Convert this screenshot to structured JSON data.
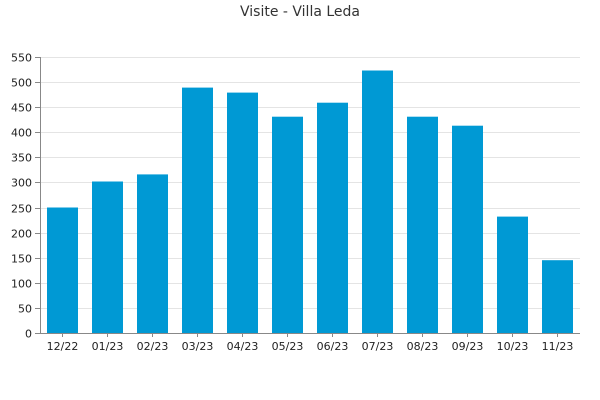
{
  "chart_data": {
    "type": "bar",
    "title": "Visite - Villa Leda",
    "xlabel": "",
    "ylabel": "",
    "categories": [
      "12/22",
      "01/23",
      "02/23",
      "03/23",
      "04/23",
      "05/23",
      "06/23",
      "07/23",
      "08/23",
      "09/23",
      "10/23",
      "11/23"
    ],
    "values": [
      250,
      302,
      316,
      489,
      479,
      431,
      459,
      523,
      431,
      413,
      232,
      145
    ],
    "ylim": [
      0,
      550
    ],
    "yticks": [
      0,
      50,
      100,
      150,
      200,
      250,
      300,
      350,
      400,
      450,
      500,
      550
    ],
    "grid": true,
    "legend": "none",
    "bar_color": "#0099d4"
  }
}
